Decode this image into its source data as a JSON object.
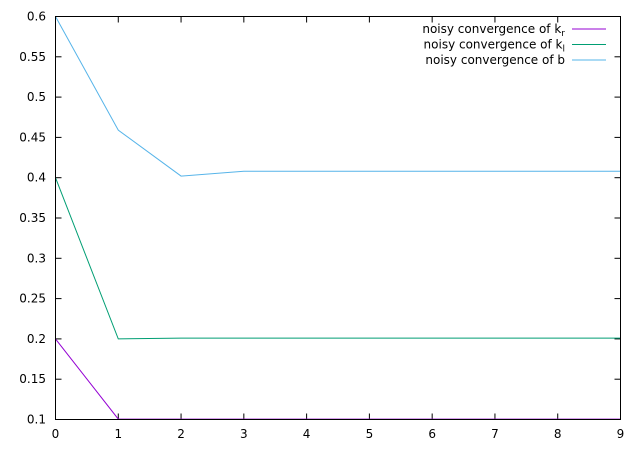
{
  "chart_data": {
    "type": "line",
    "title": "",
    "xlabel": "",
    "ylabel": "",
    "xlim": [
      0,
      9
    ],
    "ylim": [
      0.1,
      0.6
    ],
    "x_ticks": [
      "0",
      "1",
      "2",
      "3",
      "4",
      "5",
      "6",
      "7",
      "8",
      "9"
    ],
    "y_ticks": [
      "0.1",
      "0.15",
      "0.2",
      "0.25",
      "0.3",
      "0.35",
      "0.4",
      "0.45",
      "0.5",
      "0.55",
      "0.6"
    ],
    "grid": false,
    "legend_position": "top-right",
    "series": [
      {
        "name": "noisy convergence of k_r",
        "label_base": "noisy convergence of k",
        "label_sub": "r",
        "color": "#9400d3",
        "x": [
          0,
          1,
          2,
          3,
          4,
          5,
          6,
          7,
          8,
          9
        ],
        "y": [
          0.2,
          0.1005,
          0.1005,
          0.1005,
          0.1005,
          0.1005,
          0.1005,
          0.1005,
          0.1005,
          0.1005
        ]
      },
      {
        "name": "noisy convergence of k_l",
        "label_base": "noisy convergence of k",
        "label_sub": "l",
        "color": "#009e73",
        "x": [
          0,
          1,
          2,
          3,
          4,
          5,
          6,
          7,
          8,
          9
        ],
        "y": [
          0.4,
          0.2,
          0.201,
          0.201,
          0.201,
          0.201,
          0.201,
          0.201,
          0.201,
          0.201
        ]
      },
      {
        "name": "noisy convergence of b",
        "label_base": "noisy convergence of b",
        "label_sub": "",
        "color": "#56b4e9",
        "x": [
          0,
          1,
          2,
          3,
          4,
          5,
          6,
          7,
          8,
          9
        ],
        "y": [
          0.6,
          0.459,
          0.402,
          0.408,
          0.408,
          0.408,
          0.408,
          0.408,
          0.408,
          0.408
        ]
      }
    ]
  }
}
